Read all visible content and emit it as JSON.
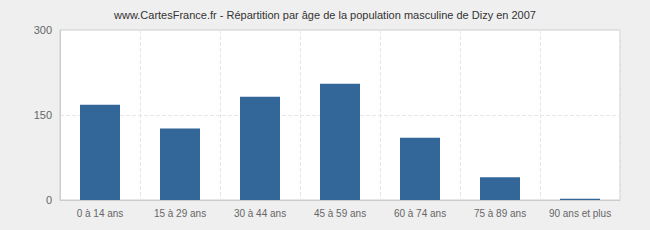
{
  "chart_data": {
    "type": "bar",
    "title": "www.CartesFrance.fr - Répartition par âge de la population masculine de Dizy en 2007",
    "categories": [
      "0 à 14 ans",
      "15 à 29 ans",
      "30 à 44 ans",
      "45 à 59 ans",
      "60 à 74 ans",
      "75 à 89 ans",
      "90 ans et plus"
    ],
    "values": [
      168,
      126,
      182,
      205,
      110,
      40,
      2
    ],
    "color": "#336699",
    "ylim": [
      0,
      300
    ],
    "yticks": [
      0,
      150,
      300
    ],
    "grid": true
  }
}
